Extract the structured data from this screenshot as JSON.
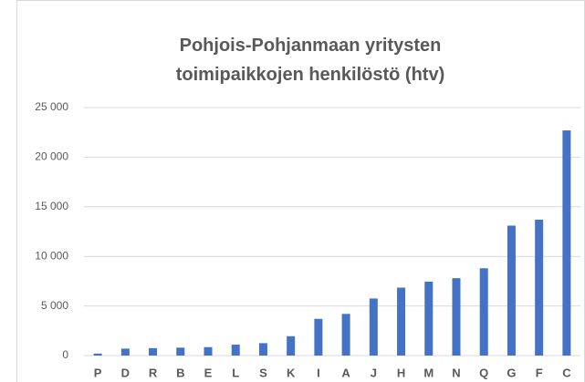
{
  "chart_data": {
    "type": "bar",
    "title": "Pohjois-Pohjanmaan yritysten toimipaikkojen henkilöstö (htv)",
    "categories": [
      "P",
      "D",
      "R",
      "B",
      "E",
      "L",
      "S",
      "K",
      "I",
      "A",
      "J",
      "H",
      "M",
      "N",
      "Q",
      "G",
      "F",
      "C"
    ],
    "values": [
      200,
      700,
      750,
      800,
      850,
      1100,
      1250,
      1950,
      3700,
      4200,
      5750,
      6850,
      7450,
      7800,
      8800,
      13100,
      13700,
      22700
    ],
    "color": "#4472c4",
    "ylim": [
      0,
      25000
    ],
    "yticks": [
      0,
      {
        "value": 5000,
        "label": "5 000"
      },
      {
        "value": 10000,
        "label": "10 000"
      },
      {
        "value": 15000,
        "label": "15 000"
      },
      {
        "value": 20000,
        "label": "20 000"
      },
      {
        "value": 25000,
        "label": "25 000"
      }
    ],
    "grid": true
  }
}
